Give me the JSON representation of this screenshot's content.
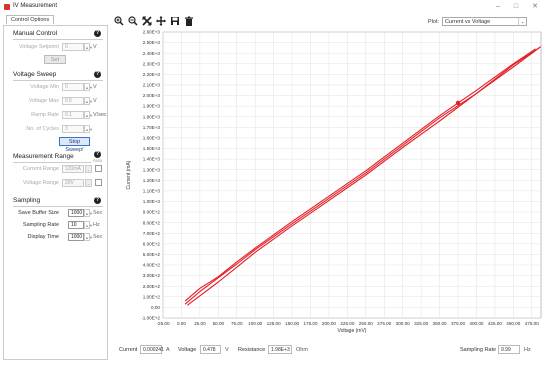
{
  "window": {
    "title": "IV Measurement",
    "minimize": "–",
    "maximize": "□",
    "close": "✕"
  },
  "tab": {
    "label": "Control Options"
  },
  "manual": {
    "title": "Manual Control",
    "help": "?",
    "voltage_label": "Voltage Setpoint",
    "voltage_value": "0",
    "voltage_unit": "V",
    "set_button": "Set"
  },
  "sweep": {
    "title": "Voltage Sweep",
    "help": "?",
    "vmin_label": "Voltage Min",
    "vmin_value": "0",
    "vmin_unit": "V",
    "vmax_label": "Voltage Max",
    "vmax_value": "0.5",
    "vmax_unit": "V",
    "ramp_label": "Ramp Rate",
    "ramp_value": "0.1",
    "ramp_unit": "V/sec",
    "cycles_label": "No. of Cycles",
    "cycles_value": "3",
    "stop_button": "Stop Sweep!"
  },
  "range": {
    "title": "Measurement Range",
    "help": "?",
    "auto_label": "Auto",
    "current_label": "Current Range",
    "current_value": "120mA",
    "voltage_label": "Voltage Range",
    "voltage_value": "20V"
  },
  "sampling": {
    "title": "Sampling",
    "help": "?",
    "buffer_label": "Save Buffer Size",
    "buffer_value": "1000",
    "buffer_unit": "Sec",
    "rate_label": "Sampling Rate",
    "rate_value": "10",
    "rate_unit": "Hz",
    "display_label": "Display Time",
    "display_value": "1000",
    "display_unit": "Sec"
  },
  "toolbar": {
    "icons": [
      "zoom-in-icon",
      "zoom-out-icon",
      "reset-zoom-icon",
      "pan-icon",
      "save-icon",
      "delete-icon"
    ]
  },
  "plot_selector": {
    "label": "Plot:",
    "value": "Current vs Voltage"
  },
  "status": {
    "current_label": "Current",
    "current_value": "0.000241",
    "current_unit": "A",
    "voltage_label": "Voltage",
    "voltage_value": "0.478",
    "voltage_unit": "V",
    "resistance_label": "Resistance",
    "resistance_value": "1.98E+3",
    "resistance_unit": "Ohm",
    "sampling_label": "Sampling Rate",
    "sampling_value": "9.99",
    "sampling_unit": "Hz"
  },
  "chart_data": {
    "type": "line",
    "xlabel": "Voltage (mV)",
    "ylabel": "Current (mA)",
    "xlim": [
      -25,
      487.5
    ],
    "ylim": [
      -100,
      2600
    ],
    "xticks": [
      "-25.00",
      "0.00",
      "25.00",
      "50.00",
      "75.00",
      "100.00",
      "125.00",
      "150.00",
      "175.00",
      "200.00",
      "225.00",
      "250.00",
      "275.00",
      "300.00",
      "325.00",
      "350.00",
      "375.00",
      "400.00",
      "425.00",
      "450.00",
      "475.00"
    ],
    "yticks": [
      "-1.00E+2",
      "0.00",
      "1.00E+2",
      "2.00E+2",
      "3.00E+2",
      "4.00E+2",
      "5.00E+2",
      "6.00E+2",
      "7.00E+2",
      "8.00E+2",
      "9.00E+2",
      "1.00E+3",
      "1.10E+3",
      "1.20E+3",
      "1.30E+3",
      "1.40E+3",
      "1.50E+3",
      "1.60E+3",
      "1.70E+3",
      "1.80E+3",
      "1.90E+3",
      "2.00E+3",
      "2.10E+3",
      "2.20E+3",
      "2.30E+3",
      "2.40E+3",
      "2.50E+3",
      "2.60E+3"
    ],
    "grid": true,
    "color": "#e41e26",
    "series": [
      {
        "x": [
          5,
          25,
          50,
          75,
          100,
          150,
          200,
          250,
          300,
          350,
          400,
          450,
          487
        ],
        "y": [
          30,
          150,
          280,
          410,
          545,
          790,
          1030,
          1270,
          1530,
          1790,
          2020,
          2290,
          2460
        ]
      },
      {
        "x": [
          487,
          450,
          400,
          350,
          300,
          250,
          200,
          150,
          100,
          75,
          50,
          25,
          8
        ],
        "y": [
          2460,
          2270,
          2020,
          1760,
          1510,
          1250,
          1010,
          770,
          520,
          380,
          240,
          110,
          20
        ]
      },
      {
        "x": [
          5,
          25,
          50,
          75,
          100,
          150,
          200,
          250,
          300,
          350,
          400,
          450,
          480
        ],
        "y": [
          60,
          180,
          290,
          430,
          560,
          810,
          1050,
          1290,
          1550,
          1810,
          2050,
          2300,
          2440
        ]
      }
    ],
    "marker": {
      "x": 375,
      "y": 1930
    }
  }
}
